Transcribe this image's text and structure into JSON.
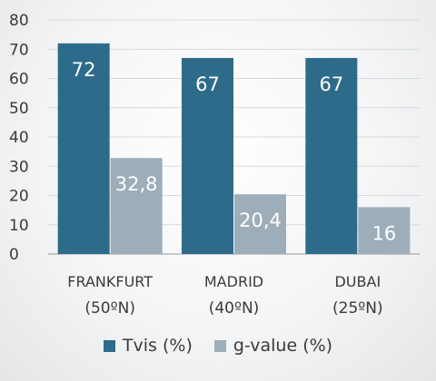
{
  "chart_data": {
    "type": "bar",
    "categories": [
      {
        "name": "FRANKFURT",
        "sub": "(50ºN)"
      },
      {
        "name": "MADRID",
        "sub": "(40ºN)"
      },
      {
        "name": "DUBAI",
        "sub": "(25ºN)"
      }
    ],
    "series": [
      {
        "name": "Tvis (%)",
        "color": "#2e6b8a",
        "values": [
          72,
          67,
          67
        ],
        "labels": [
          "72",
          "67",
          "67"
        ]
      },
      {
        "name": "g-value (%)",
        "color": "#9dadba",
        "values": [
          32.8,
          20.4,
          16
        ],
        "labels": [
          "32,8",
          "20,4",
          "16"
        ]
      }
    ],
    "ylim": [
      0,
      80
    ],
    "yticks": [
      0,
      10,
      20,
      30,
      40,
      50,
      60,
      70,
      80
    ],
    "grid": true,
    "legend_position": "bottom",
    "title": "",
    "xlabel": "",
    "ylabel": ""
  }
}
